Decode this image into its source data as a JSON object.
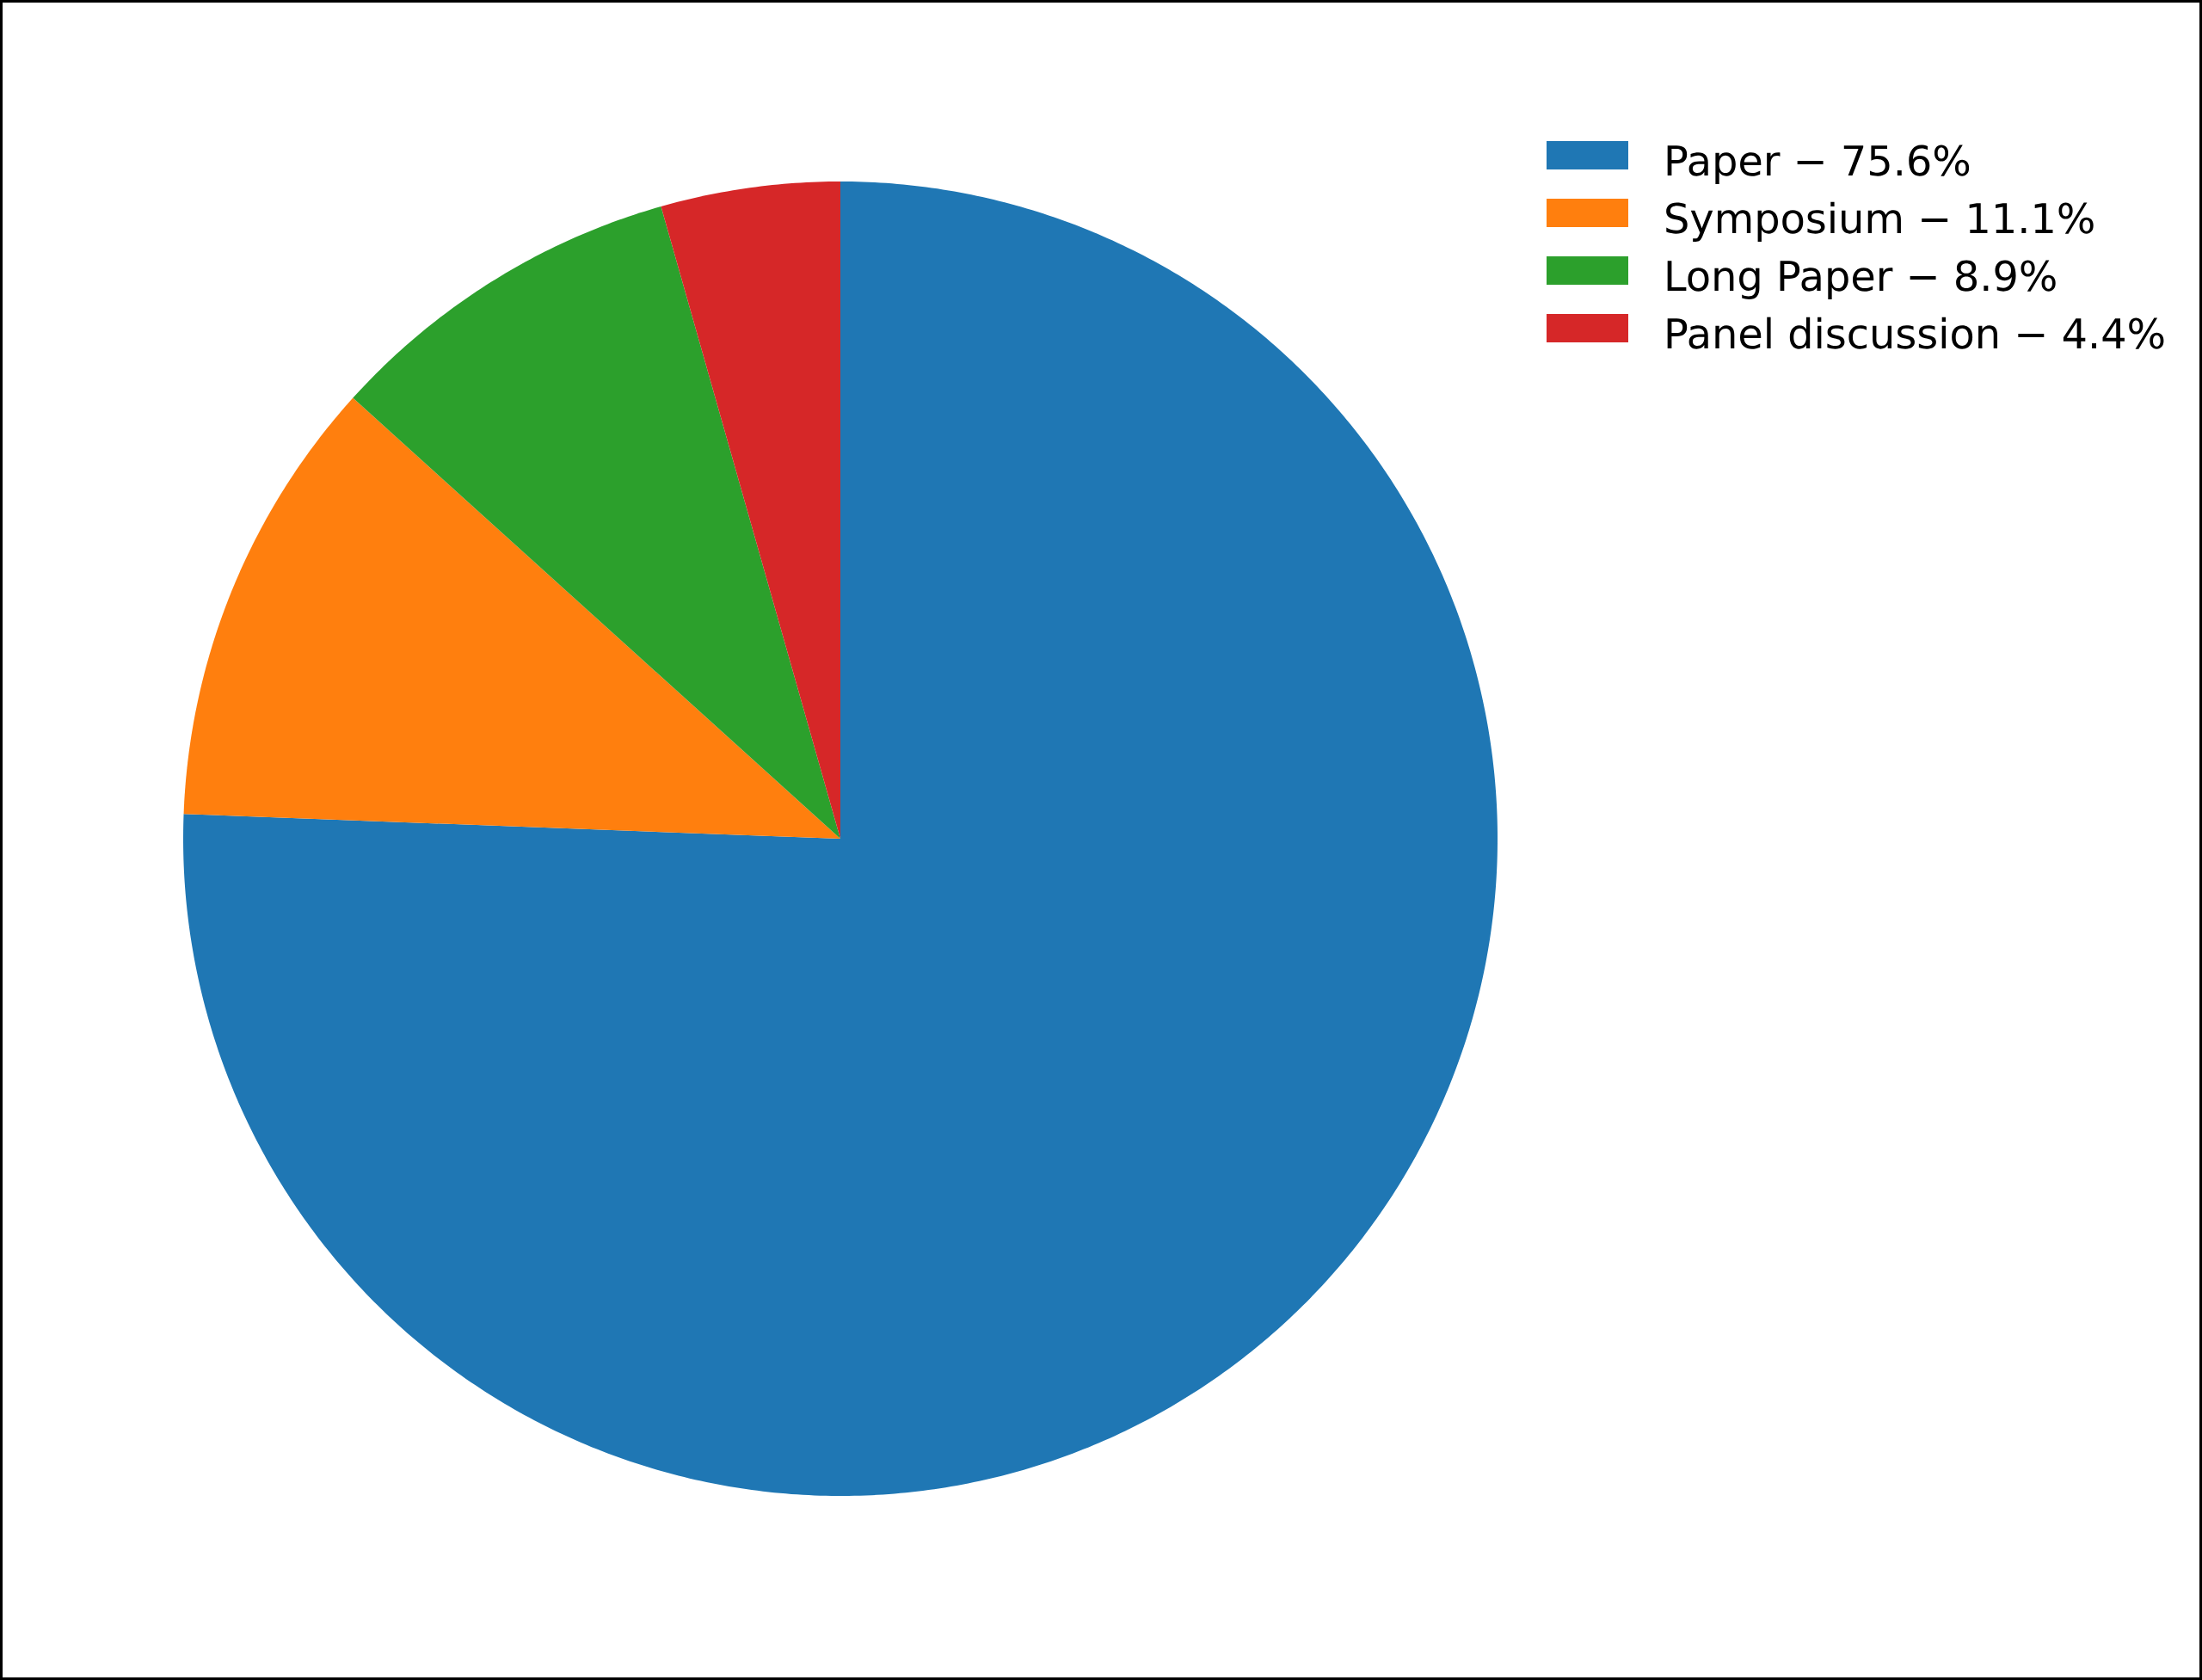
{
  "chart_data": {
    "type": "pie",
    "categories": [
      "Paper − 75.6%",
      "Symposium − 11.1%",
      "Long Paper − 8.9%",
      "Panel discussion − 4.4%"
    ],
    "values": [
      75.6,
      11.1,
      8.9,
      4.4
    ],
    "colors": [
      "#1f77b4",
      "#ff7f0e",
      "#2ca02c",
      "#d62728"
    ],
    "legend": "top right"
  }
}
